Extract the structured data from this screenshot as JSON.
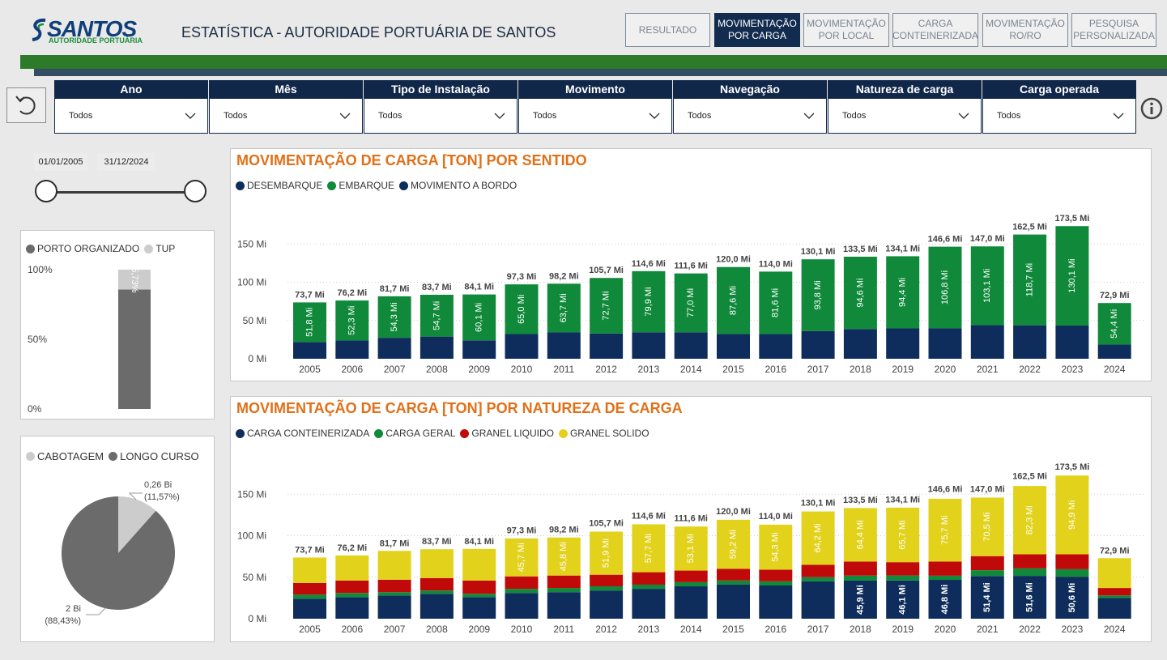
{
  "header": {
    "logo_text": "SANTOS",
    "logo_subtext": "AUTORIDADE PORTUÁRIA",
    "title": "ESTATÍSTICA - AUTORIDADE PORTUÁRIA DE SANTOS",
    "nav": [
      {
        "line1": "RESULTADO",
        "line2": "",
        "active": false
      },
      {
        "line1": "MOVIMENTAÇÃO",
        "line2": "POR CARGA",
        "active": true
      },
      {
        "line1": "MOVIMENTAÇÃO",
        "line2": "POR LOCAL",
        "active": false
      },
      {
        "line1": "CARGA",
        "line2": "CONTEINERIZADA",
        "active": false
      },
      {
        "line1": "MOVIMENTAÇÃO",
        "line2": "RO/RO",
        "active": false
      },
      {
        "line1": "PESQUISA",
        "line2": "PERSONALIZADA",
        "active": false
      }
    ]
  },
  "filters": [
    {
      "label": "Ano",
      "value": "Todos"
    },
    {
      "label": "Mês",
      "value": "Todos"
    },
    {
      "label": "Tipo de Instalação",
      "value": "Todos"
    },
    {
      "label": "Movimento",
      "value": "Todos"
    },
    {
      "label": "Navegação",
      "value": "Todos"
    },
    {
      "label": "Natureza de carga",
      "value": "Todos"
    },
    {
      "label": "Carga operada",
      "value": "Todos"
    }
  ],
  "date_range": {
    "start": "01/01/2005",
    "end": "31/12/2024"
  },
  "colors": {
    "navy": "#0e2d5c",
    "green": "#108a3a",
    "red": "#c00a0a",
    "yellow": "#e3d21c",
    "dark_gray": "#6b6b6b",
    "light_gray": "#cccccc",
    "accent_orange": "#e07018"
  },
  "installation_chart": {
    "legend": [
      "PORTO ORGANIZADO",
      "TUP"
    ],
    "y_ticks": [
      "100%",
      "50%",
      "0%"
    ],
    "porto_organizado_pct": 85.73,
    "label": "85,73%"
  },
  "navigation_chart": {
    "legend": [
      "CABOTAGEM",
      "LONGO CURSO"
    ],
    "cabotagem": {
      "value": 0.26,
      "label": "0,26 Bi",
      "pct_label": "(11,57%)",
      "pct": 11.57
    },
    "longo_curso": {
      "value": 2,
      "label": "2 Bi",
      "pct_label": "(88,43%)",
      "pct": 88.43
    }
  },
  "chart_data": [
    {
      "type": "bar",
      "stacked": true,
      "title": "MOVIMENTAÇÃO DE CARGA [TON] POR SENTIDO",
      "legend": [
        "DESEMBARQUE",
        "EMBARQUE",
        "MOVIMENTO A BORDO"
      ],
      "categories": [
        "2005",
        "2006",
        "2007",
        "2008",
        "2009",
        "2010",
        "2011",
        "2012",
        "2013",
        "2014",
        "2015",
        "2016",
        "2017",
        "2018",
        "2019",
        "2020",
        "2021",
        "2022",
        "2023",
        "2024"
      ],
      "y_ticks": [
        "0 Mi",
        "50 Mi",
        "100 Mi",
        "150 Mi"
      ],
      "ylim": [
        0,
        185
      ],
      "series": [
        {
          "name": "DESEMBARQUE",
          "color": "#0e2d5c",
          "values": [
            21.9,
            23.9,
            27.4,
            29.0,
            24.0,
            32.3,
            34.5,
            33.0,
            34.7,
            34.6,
            32.4,
            32.4,
            36.3,
            38.9,
            39.7,
            39.8,
            43.9,
            43.8,
            43.4,
            18.5
          ]
        },
        {
          "name": "EMBARQUE",
          "color": "#108a3a",
          "values": [
            51.8,
            52.3,
            54.3,
            54.7,
            60.1,
            65.0,
            63.7,
            72.7,
            79.9,
            77.0,
            87.6,
            81.6,
            93.8,
            94.6,
            94.4,
            106.8,
            103.1,
            118.7,
            130.1,
            54.4
          ]
        },
        {
          "name": "MOVIMENTO A BORDO",
          "color": "#0e2d5c",
          "values": [
            0,
            0,
            0,
            0,
            0,
            0,
            0,
            0,
            0,
            0,
            0,
            0,
            0,
            0,
            0,
            0,
            0,
            0,
            0,
            0
          ]
        }
      ],
      "segment_labels": [
        "51,8 Mi",
        "52,3 Mi",
        "54,3 Mi",
        "54,7 Mi",
        "60,1 Mi",
        "65,0 Mi",
        "63,7 Mi",
        "72,7 Mi",
        "79,9 Mi",
        "77,0 Mi",
        "87,6 Mi",
        "81,6 Mi",
        "93,8 Mi",
        "94,6 Mi",
        "94,4 Mi",
        "106,8 Mi",
        "103,1 Mi",
        "118,7 Mi",
        "130,1 Mi",
        "54,4 Mi"
      ],
      "totals": [
        73.7,
        76.2,
        81.7,
        83.7,
        84.1,
        97.3,
        98.2,
        105.7,
        114.6,
        111.6,
        120.0,
        114.0,
        130.1,
        133.5,
        134.1,
        146.6,
        147.0,
        162.5,
        173.5,
        72.9
      ],
      "total_labels": [
        "73,7 Mi",
        "76,2 Mi",
        "81,7 Mi",
        "83,7 Mi",
        "84,1 Mi",
        "97,3 Mi",
        "98,2 Mi",
        "105,7 Mi",
        "114,6 Mi",
        "111,6 Mi",
        "120,0 Mi",
        "114,0 Mi",
        "130,1 Mi",
        "133,5 Mi",
        "134,1 Mi",
        "146,6 Mi",
        "147,0 Mi",
        "162,5 Mi",
        "173,5 Mi",
        "72,9 Mi"
      ]
    },
    {
      "type": "bar",
      "stacked": true,
      "title": "MOVIMENTAÇÃO DE CARGA [TON] POR NATUREZA DE CARGA",
      "legend": [
        "CARGA CONTEINERIZADA",
        "CARGA GERAL",
        "GRANEL LIQUIDO",
        "GRANEL SOLIDO"
      ],
      "categories": [
        "2005",
        "2006",
        "2007",
        "2008",
        "2009",
        "2010",
        "2011",
        "2012",
        "2013",
        "2014",
        "2015",
        "2016",
        "2017",
        "2018",
        "2019",
        "2020",
        "2021",
        "2022",
        "2023",
        "2024"
      ],
      "y_ticks": [
        "0 Mi",
        "50 Mi",
        "100 Mi",
        "150 Mi"
      ],
      "ylim": [
        0,
        185
      ],
      "series": [
        {
          "name": "CARGA CONTEINERIZADA",
          "color": "#0e2d5c",
          "values": [
            24,
            26,
            28,
            30,
            26,
            31,
            32,
            34,
            36,
            39,
            41,
            40,
            45,
            45.9,
            46.1,
            46.8,
            51.4,
            51.6,
            50.6,
            25
          ]
        },
        {
          "name": "CARGA GERAL",
          "color": "#108a3a",
          "values": [
            5,
            5,
            4,
            4,
            4,
            5,
            5,
            5,
            5,
            5,
            5,
            5,
            5,
            6,
            6,
            5,
            7,
            9,
            9,
            3
          ]
        },
        {
          "name": "GRANEL LIQUIDO",
          "color": "#c00a0a",
          "values": [
            14,
            15,
            15,
            15,
            16,
            15,
            15,
            14,
            15,
            14,
            14,
            14,
            15,
            17,
            16,
            17,
            17,
            17,
            18,
            9
          ]
        },
        {
          "name": "GRANEL SOLIDO",
          "color": "#e3d21c",
          "values": [
            30.7,
            30.2,
            34.7,
            34.7,
            38.1,
            45.7,
            45.8,
            51.9,
            57.7,
            53.1,
            59.2,
            54.3,
            64.2,
            64.4,
            65.7,
            75.7,
            70.5,
            82.3,
            94.9,
            35.9
          ]
        }
      ],
      "segment_labels": {
        "GRANEL SOLIDO": [
          "",
          "",
          "",
          "",
          "",
          "45,7 Mi",
          "45,8 Mi",
          "51,9 Mi",
          "57,7 Mi",
          "53,1 Mi",
          "59,2 Mi",
          "54,3 Mi",
          "64,2 Mi",
          "64,4 Mi",
          "65,7 Mi",
          "75,7 Mi",
          "70,5 Mi",
          "82,3 Mi",
          "94,9 Mi",
          ""
        ],
        "CARGA CONTEINERIZADA": [
          "",
          "",
          "",
          "",
          "",
          "",
          "",
          "",
          "",
          "",
          "",
          "",
          "",
          "45,9 Mi",
          "46,1 Mi",
          "46,8 Mi",
          "51,4 Mi",
          "51,6 Mi",
          "50,6 Mi",
          ""
        ]
      },
      "totals": [
        73.7,
        76.2,
        81.7,
        83.7,
        84.1,
        97.3,
        98.2,
        105.7,
        114.6,
        111.6,
        120.0,
        114.0,
        130.1,
        133.5,
        134.1,
        146.6,
        147.0,
        162.5,
        173.5,
        72.9
      ],
      "total_labels": [
        "73,7 Mi",
        "76,2 Mi",
        "81,7 Mi",
        "83,7 Mi",
        "84,1 Mi",
        "97,3 Mi",
        "98,2 Mi",
        "105,7 Mi",
        "114,6 Mi",
        "111,6 Mi",
        "120,0 Mi",
        "114,0 Mi",
        "130,1 Mi",
        "133,5 Mi",
        "134,1 Mi",
        "146,6 Mi",
        "147,0 Mi",
        "162,5 Mi",
        "173,5 Mi",
        "72,9 Mi"
      ]
    }
  ]
}
